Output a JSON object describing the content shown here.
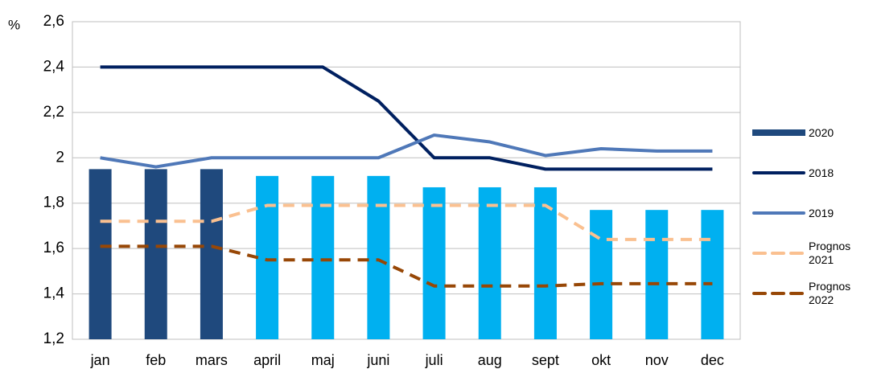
{
  "chart_data": {
    "type": "combo",
    "y_label": "%",
    "categories": [
      "jan",
      "feb",
      "mars",
      "april",
      "maj",
      "juni",
      "juli",
      "aug",
      "sept",
      "okt",
      "nov",
      "dec"
    ],
    "ylim": [
      1.2,
      2.6
    ],
    "yticks": [
      {
        "value": 1.2,
        "label": "1,2"
      },
      {
        "value": 1.4,
        "label": "1,4"
      },
      {
        "value": 1.6,
        "label": "1,6"
      },
      {
        "value": 1.8,
        "label": "1,8"
      },
      2,
      {
        "value": 2.2,
        "label": "2,2"
      },
      {
        "value": 2.4,
        "label": "2,4"
      },
      {
        "value": 2.6,
        "label": "2,6"
      }
    ],
    "grid": true,
    "legend": "right",
    "series": [
      {
        "name": "2020",
        "kind": "bar",
        "color": "#1f497d",
        "point_colors": [
          "#1f497d",
          "#1f497d",
          "#1f497d",
          "#00b0f0",
          "#00b0f0",
          "#00b0f0",
          "#00b0f0",
          "#00b0f0",
          "#00b0f0",
          "#00b0f0",
          "#00b0f0",
          "#00b0f0"
        ],
        "values": [
          1.95,
          1.95,
          1.95,
          1.92,
          1.92,
          1.92,
          1.87,
          1.87,
          1.87,
          1.77,
          1.77,
          1.77
        ]
      },
      {
        "name": "2018",
        "kind": "line",
        "color": "#002060",
        "dashed": false,
        "values": [
          2.4,
          2.4,
          2.4,
          2.4,
          2.4,
          2.25,
          2.0,
          2.0,
          1.95,
          1.95,
          1.95,
          1.95
        ]
      },
      {
        "name": "2019",
        "kind": "line",
        "color": "#4f78b8",
        "dashed": false,
        "values": [
          2.0,
          1.96,
          2.0,
          2.0,
          2.0,
          2.0,
          2.1,
          2.07,
          2.01,
          2.04,
          2.03,
          2.03
        ]
      },
      {
        "name": "Prognos 2021",
        "kind": "line",
        "color": "#fac090",
        "dashed": true,
        "values": [
          1.72,
          1.72,
          1.72,
          1.79,
          1.79,
          1.79,
          1.79,
          1.79,
          1.79,
          1.64,
          1.64,
          1.64
        ]
      },
      {
        "name": "Prognos 2022",
        "kind": "line",
        "color": "#974706",
        "dashed": true,
        "values": [
          1.61,
          1.61,
          1.61,
          1.55,
          1.55,
          1.55,
          1.435,
          1.435,
          1.435,
          1.445,
          1.445,
          1.445
        ]
      }
    ]
  }
}
